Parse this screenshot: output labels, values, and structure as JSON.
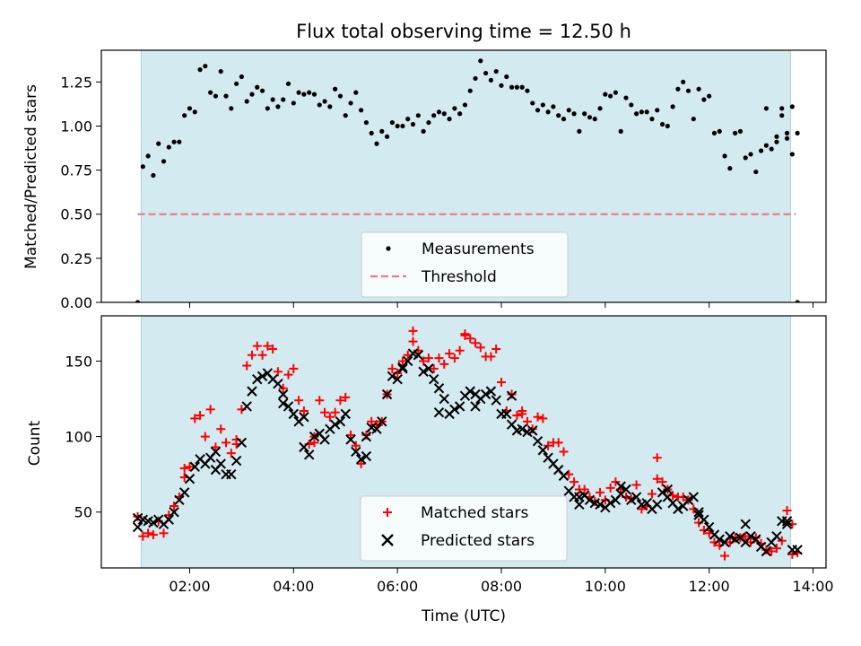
{
  "chart_data": [
    {
      "type": "scatter",
      "title": "Flux total observing time = 12.50 h",
      "xlabel": "",
      "ylabel": "Matched/Predicted stars",
      "xlim": [
        "00:18",
        "14:15"
      ],
      "ylim": [
        0,
        1.43
      ],
      "y_ticks": [
        0.0,
        0.25,
        0.5,
        0.75,
        1.0,
        1.25
      ],
      "y_tick_labels": [
        "0.00",
        "0.25",
        "0.50",
        "0.75",
        "1.00",
        "1.25"
      ],
      "x_ticks": [
        "02:00",
        "04:00",
        "06:00",
        "08:00",
        "10:00",
        "12:00",
        "14:00"
      ],
      "show_x_tick_labels": false,
      "shaded_span": {
        "from": "01:04",
        "to": "13:34",
        "color": "#d3eaf0"
      },
      "threshold": {
        "y": 0.5,
        "color": "#f07c80"
      },
      "legend": {
        "position": "lower-center",
        "entries": [
          "Measurements",
          "Threshold"
        ]
      },
      "series": [
        {
          "name": "Measurements",
          "marker": "dot",
          "color": "#000000",
          "x": [
            "01:00",
            "01:06",
            "01:12",
            "01:18",
            "01:24",
            "01:30",
            "01:36",
            "01:42",
            "01:48",
            "01:54",
            "02:00",
            "02:06",
            "02:12",
            "02:18",
            "02:24",
            "02:30",
            "02:36",
            "02:42",
            "02:48",
            "02:54",
            "03:00",
            "03:06",
            "03:12",
            "03:18",
            "03:24",
            "03:30",
            "03:36",
            "03:42",
            "03:48",
            "03:54",
            "04:00",
            "04:06",
            "04:12",
            "04:18",
            "04:24",
            "04:30",
            "04:36",
            "04:42",
            "04:48",
            "04:54",
            "05:00",
            "05:06",
            "05:12",
            "05:18",
            "05:24",
            "05:30",
            "05:36",
            "05:42",
            "05:48",
            "05:54",
            "06:00",
            "06:06",
            "06:12",
            "06:18",
            "06:24",
            "06:30",
            "06:36",
            "06:42",
            "06:48",
            "06:54",
            "07:00",
            "07:06",
            "07:12",
            "07:18",
            "07:24",
            "07:30",
            "07:36",
            "07:42",
            "07:48",
            "07:54",
            "08:00",
            "08:06",
            "08:12",
            "08:18",
            "08:24",
            "08:30",
            "08:36",
            "08:42",
            "08:48",
            "08:54",
            "09:00",
            "09:06",
            "09:12",
            "09:18",
            "09:24",
            "09:30",
            "09:36",
            "09:42",
            "09:48",
            "09:54",
            "10:00",
            "10:06",
            "10:12",
            "10:18",
            "10:24",
            "10:30",
            "10:36",
            "10:42",
            "10:48",
            "10:54",
            "11:00",
            "11:06",
            "11:12",
            "11:18",
            "11:24",
            "11:30",
            "11:36",
            "11:42",
            "11:48",
            "11:54",
            "12:00",
            "12:06",
            "12:12",
            "12:18",
            "12:24",
            "12:30",
            "12:36",
            "12:42",
            "12:48",
            "12:54",
            "13:00",
            "13:06",
            "13:12",
            "13:18",
            "13:24",
            "13:30",
            "13:36",
            "13:42"
          ],
          "values": [
            0.0,
            0.77,
            0.83,
            0.72,
            0.9,
            0.8,
            0.88,
            0.91,
            0.91,
            1.06,
            1.1,
            1.08,
            1.32,
            1.34,
            1.19,
            1.17,
            1.31,
            1.17,
            1.1,
            1.24,
            1.28,
            1.14,
            1.18,
            1.22,
            1.2,
            1.1,
            1.15,
            1.11,
            1.15,
            1.24,
            1.13,
            1.19,
            1.18,
            1.19,
            1.18,
            1.12,
            1.14,
            1.11,
            1.21,
            1.17,
            1.06,
            1.13,
            1.19,
            1.09,
            1.02,
            0.96,
            0.9,
            0.97,
            0.94,
            1.02,
            1.0,
            1.0,
            1.04,
            1.01,
            1.06,
            0.97,
            1.02,
            1.06,
            1.08,
            1.07,
            1.04,
            1.1,
            1.07,
            1.12,
            1.2,
            1.27,
            1.37,
            1.3,
            1.26,
            1.31,
            1.23,
            1.28,
            1.22,
            1.22,
            1.22,
            1.2,
            1.13,
            1.09,
            1.12,
            1.08,
            1.11,
            1.06,
            1.04,
            1.09,
            1.07,
            0.97,
            1.07,
            1.05,
            1.04,
            1.1,
            1.18,
            1.17,
            1.19,
            0.97,
            1.16,
            1.12,
            1.07,
            1.08,
            1.08,
            1.04,
            1.09,
            1.01,
            1.0,
            1.11,
            1.21,
            1.25,
            1.2,
            1.04,
            1.21,
            1.15,
            1.17,
            0.96,
            0.97,
            0.83,
            0.76,
            0.96,
            0.97,
            0.82,
            0.84,
            0.74,
            0.86,
            0.89,
            0.87,
            0.91,
            1.06,
            0.96,
            1.11,
            0.96
          ],
          "extra_points": [
            {
              "x": "13:06",
              "y": 1.1
            },
            {
              "x": "13:18",
              "y": 0.94
            },
            {
              "x": "13:24",
              "y": 1.1
            },
            {
              "x": "13:30",
              "y": 0.93
            },
            {
              "x": "13:36",
              "y": 0.84
            },
            {
              "x": "13:42",
              "y": 0.0
            }
          ]
        },
        {
          "name": "Threshold",
          "marker": "dashed-line",
          "color": "#f07c80",
          "x": [
            "01:00",
            "13:40"
          ],
          "values": [
            0.5,
            0.5
          ]
        }
      ]
    },
    {
      "type": "scatter",
      "title": "",
      "xlabel": "Time (UTC)",
      "ylabel": "Count",
      "xlim": [
        "00:18",
        "14:15"
      ],
      "ylim": [
        13,
        180
      ],
      "y_ticks": [
        50,
        100,
        150
      ],
      "y_tick_labels": [
        "50",
        "100",
        "150"
      ],
      "x_ticks": [
        "02:00",
        "04:00",
        "06:00",
        "08:00",
        "10:00",
        "12:00",
        "14:00"
      ],
      "x_tick_labels": [
        "02:00",
        "04:00",
        "06:00",
        "08:00",
        "10:00",
        "12:00",
        "14:00"
      ],
      "shaded_span": {
        "from": "01:04",
        "to": "13:34",
        "color": "#d3eaf0"
      },
      "legend": {
        "position": "lower-center",
        "entries": [
          "Matched stars",
          "Predicted stars"
        ]
      },
      "x": [
        "01:00",
        "01:06",
        "01:12",
        "01:18",
        "01:24",
        "01:30",
        "01:36",
        "01:42",
        "01:48",
        "01:54",
        "02:00",
        "02:06",
        "02:12",
        "02:18",
        "02:24",
        "02:30",
        "02:36",
        "02:42",
        "02:48",
        "02:54",
        "03:00",
        "03:06",
        "03:12",
        "03:18",
        "03:24",
        "03:30",
        "03:36",
        "03:42",
        "03:48",
        "03:54",
        "04:00",
        "04:06",
        "04:12",
        "04:18",
        "04:24",
        "04:30",
        "04:36",
        "04:42",
        "04:48",
        "04:54",
        "05:00",
        "05:06",
        "05:12",
        "05:18",
        "05:24",
        "05:30",
        "05:36",
        "05:42",
        "05:48",
        "05:54",
        "06:00",
        "06:06",
        "06:12",
        "06:18",
        "06:24",
        "06:30",
        "06:36",
        "06:42",
        "06:48",
        "06:54",
        "07:00",
        "07:06",
        "07:12",
        "07:18",
        "07:24",
        "07:30",
        "07:36",
        "07:42",
        "07:48",
        "07:54",
        "08:00",
        "08:06",
        "08:12",
        "08:18",
        "08:24",
        "08:30",
        "08:36",
        "08:42",
        "08:48",
        "08:54",
        "09:00",
        "09:06",
        "09:12",
        "09:18",
        "09:24",
        "09:30",
        "09:36",
        "09:42",
        "09:48",
        "09:54",
        "10:00",
        "10:06",
        "10:12",
        "10:18",
        "10:24",
        "10:30",
        "10:36",
        "10:42",
        "10:48",
        "10:54",
        "11:00",
        "11:06",
        "11:12",
        "11:18",
        "11:24",
        "11:30",
        "11:36",
        "11:42",
        "11:48",
        "11:54",
        "12:00",
        "12:06",
        "12:12",
        "12:18",
        "12:24",
        "12:30",
        "12:36",
        "12:42",
        "12:48",
        "12:54",
        "13:00",
        "13:06",
        "13:12",
        "13:18",
        "13:24",
        "13:30",
        "13:36",
        "13:42"
      ],
      "series": [
        {
          "name": "Matched stars",
          "marker": "plus",
          "color": "#ff0000",
          "values": [
            47,
            34,
            36,
            35,
            44,
            36,
            48,
            54,
            60,
            73,
            80,
            112,
            114,
            100,
            118,
            93,
            105,
            96,
            89,
            95,
            118,
            147,
            154,
            160,
            154,
            160,
            158,
            143,
            132,
            141,
            145,
            124,
            117,
            95,
            100,
            124,
            116,
            113,
            116,
            124,
            126,
            101,
            94,
            82,
            101,
            110,
            108,
            110,
            128,
            145,
            142,
            150,
            154,
            170,
            157,
            150,
            152,
            145,
            152,
            148,
            155,
            152,
            157,
            167,
            165,
            162,
            159,
            153,
            153,
            158,
            136,
            117,
            128,
            114,
            115,
            110,
            105,
            113,
            112,
            94,
            96,
            96,
            90,
            75,
            70,
            65,
            65,
            60,
            57,
            63,
            58,
            66,
            70,
            65,
            60,
            59,
            68,
            52,
            54,
            62,
            86,
            70,
            65,
            61,
            60,
            60,
            58,
            52,
            43,
            38,
            36,
            30,
            28,
            21,
            30,
            33,
            33,
            34,
            30,
            33,
            29,
            25,
            24,
            26,
            31,
            51,
            42,
            23
          ],
          "extra_points": [
            {
              "x": "01:54",
              "y": 79
            },
            {
              "x": "02:54",
              "y": 98
            },
            {
              "x": "04:24",
              "y": 96
            },
            {
              "x": "06:18",
              "y": 163
            },
            {
              "x": "07:18",
              "y": 168
            },
            {
              "x": "08:24",
              "y": 117
            },
            {
              "x": "11:00",
              "y": 72
            },
            {
              "x": "13:36",
              "y": 22
            }
          ]
        },
        {
          "name": "Predicted stars",
          "marker": "x",
          "color": "#000000",
          "values": [
            46,
            45,
            44,
            43,
            45,
            42,
            45,
            50,
            58,
            63,
            72,
            80,
            85,
            82,
            86,
            90,
            82,
            75,
            75,
            84,
            96,
            120,
            130,
            138,
            140,
            142,
            138,
            135,
            128,
            120,
            115,
            110,
            93,
            88,
            100,
            102,
            98,
            105,
            108,
            110,
            115,
            98,
            90,
            85,
            100,
            106,
            105,
            110,
            128,
            140,
            138,
            145,
            150,
            155,
            154,
            143,
            145,
            138,
            132,
            125,
            115,
            118,
            120,
            127,
            130,
            128,
            125,
            128,
            130,
            124,
            115,
            115,
            108,
            104,
            105,
            103,
            104,
            97,
            91,
            86,
            82,
            78,
            74,
            64,
            60,
            60,
            61,
            58,
            56,
            55,
            53,
            56,
            58,
            62,
            65,
            58,
            60,
            55,
            56,
            52,
            55,
            63,
            60,
            56,
            52,
            54,
            58,
            60,
            48,
            45,
            40,
            35,
            32,
            30,
            34,
            32,
            33,
            30,
            34,
            32,
            27,
            24,
            30,
            34,
            44,
            42,
            25,
            25
          ],
          "extra_points": [
            {
              "x": "01:00",
              "y": 40
            },
            {
              "x": "02:30",
              "y": 78
            },
            {
              "x": "03:48",
              "y": 122
            },
            {
              "x": "04:12",
              "y": 113
            },
            {
              "x": "05:24",
              "y": 87
            },
            {
              "x": "06:06",
              "y": 146
            },
            {
              "x": "06:48",
              "y": 116
            },
            {
              "x": "07:30",
              "y": 120
            },
            {
              "x": "08:12",
              "y": 127
            },
            {
              "x": "09:30",
              "y": 55
            },
            {
              "x": "10:18",
              "y": 67
            },
            {
              "x": "11:12",
              "y": 65
            },
            {
              "x": "11:48",
              "y": 50
            },
            {
              "x": "12:42",
              "y": 42
            },
            {
              "x": "13:30",
              "y": 44
            }
          ]
        }
      ]
    }
  ]
}
